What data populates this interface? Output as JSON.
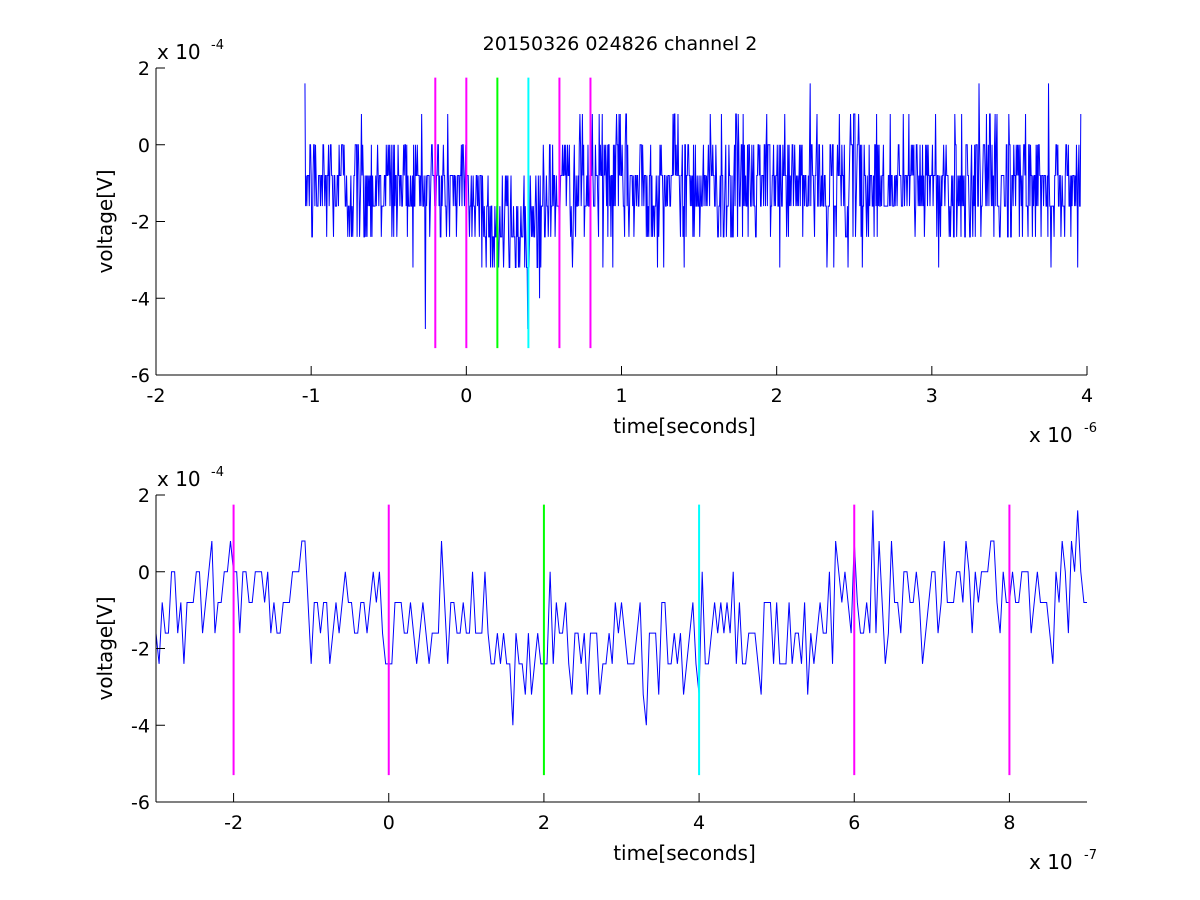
{
  "figure_title": "20150326 024826 channel 2",
  "colors": {
    "signal": "#0000ff",
    "magenta": "#ff00ff",
    "green": "#00ff00",
    "cyan": "#00ffff",
    "axes": "#000000",
    "background": "#ffffff"
  },
  "chart_data": [
    {
      "type": "line",
      "title": "20150326 024826 channel 2",
      "xlabel": "time[seconds]",
      "ylabel": "voltage[V]",
      "x_multiplier": "x 10",
      "x_exponent": "-6",
      "y_multiplier": "x 10",
      "y_exponent": "-4",
      "xlim": [
        -2e-06,
        4e-06
      ],
      "ylim": [
        -0.0006,
        0.0002
      ],
      "x_ticks": [
        -2,
        -1,
        0,
        1,
        2,
        3,
        4
      ],
      "y_ticks": [
        -6,
        -4,
        -2,
        0,
        2
      ],
      "grid": false,
      "signal": {
        "color": "#0000ff",
        "t_start": -1.04e-06,
        "t_end": 3.96e-06,
        "dt": 4e-09,
        "quant_step": 8e-05,
        "baseline": -0.0001,
        "dip": {
          "center": 3e-07,
          "width": 2.4e-07,
          "depth": 0.00012
        },
        "range": [
          -0.00048,
          0.00016
        ]
      },
      "markers": [
        {
          "x": -2e-07,
          "color": "#ff00ff",
          "y_from": -0.00053,
          "y_to": 0.000175
        },
        {
          "x": 0,
          "color": "#ff00ff",
          "y_from": -0.00053,
          "y_to": 0.000175
        },
        {
          "x": 2e-07,
          "color": "#00ff00",
          "y_from": -0.00053,
          "y_to": 0.000175
        },
        {
          "x": 4e-07,
          "color": "#00ffff",
          "y_from": -0.00053,
          "y_to": 0.000175
        },
        {
          "x": 6e-07,
          "color": "#ff00ff",
          "y_from": -0.00053,
          "y_to": 0.000175
        },
        {
          "x": 8e-07,
          "color": "#ff00ff",
          "y_from": -0.00053,
          "y_to": 0.000175
        }
      ]
    },
    {
      "type": "line",
      "title": "",
      "xlabel": "time[seconds]",
      "ylabel": "voltage[V]",
      "x_multiplier": "x 10",
      "x_exponent": "-7",
      "y_multiplier": "x 10",
      "y_exponent": "-4",
      "xlim": [
        -3e-07,
        9e-07
      ],
      "ylim": [
        -0.0006,
        0.0002
      ],
      "x_ticks": [
        -2,
        0,
        2,
        4,
        6,
        8
      ],
      "y_ticks": [
        -6,
        -4,
        -2,
        0,
        2
      ],
      "grid": false,
      "signal": {
        "color": "#0000ff",
        "t_start": -3e-07,
        "t_end": 9e-07,
        "dt": 4e-09,
        "quant_step": 8e-05,
        "baseline": -6e-05,
        "dip": {
          "center": 3e-07,
          "width": 2.6e-07,
          "depth": 0.00015
        },
        "range": [
          -0.0004,
          0.00016
        ]
      },
      "markers": [
        {
          "x": -2e-07,
          "color": "#ff00ff",
          "y_from": -0.00053,
          "y_to": 0.000175
        },
        {
          "x": 0,
          "color": "#ff00ff",
          "y_from": -0.00053,
          "y_to": 0.000175
        },
        {
          "x": 2e-07,
          "color": "#00ff00",
          "y_from": -0.00053,
          "y_to": 0.000175
        },
        {
          "x": 4e-07,
          "color": "#00ffff",
          "y_from": -0.00053,
          "y_to": 0.000175
        },
        {
          "x": 6e-07,
          "color": "#ff00ff",
          "y_from": -0.00053,
          "y_to": 0.000175
        },
        {
          "x": 8e-07,
          "color": "#ff00ff",
          "y_from": -0.00053,
          "y_to": 0.000175
        }
      ]
    }
  ]
}
